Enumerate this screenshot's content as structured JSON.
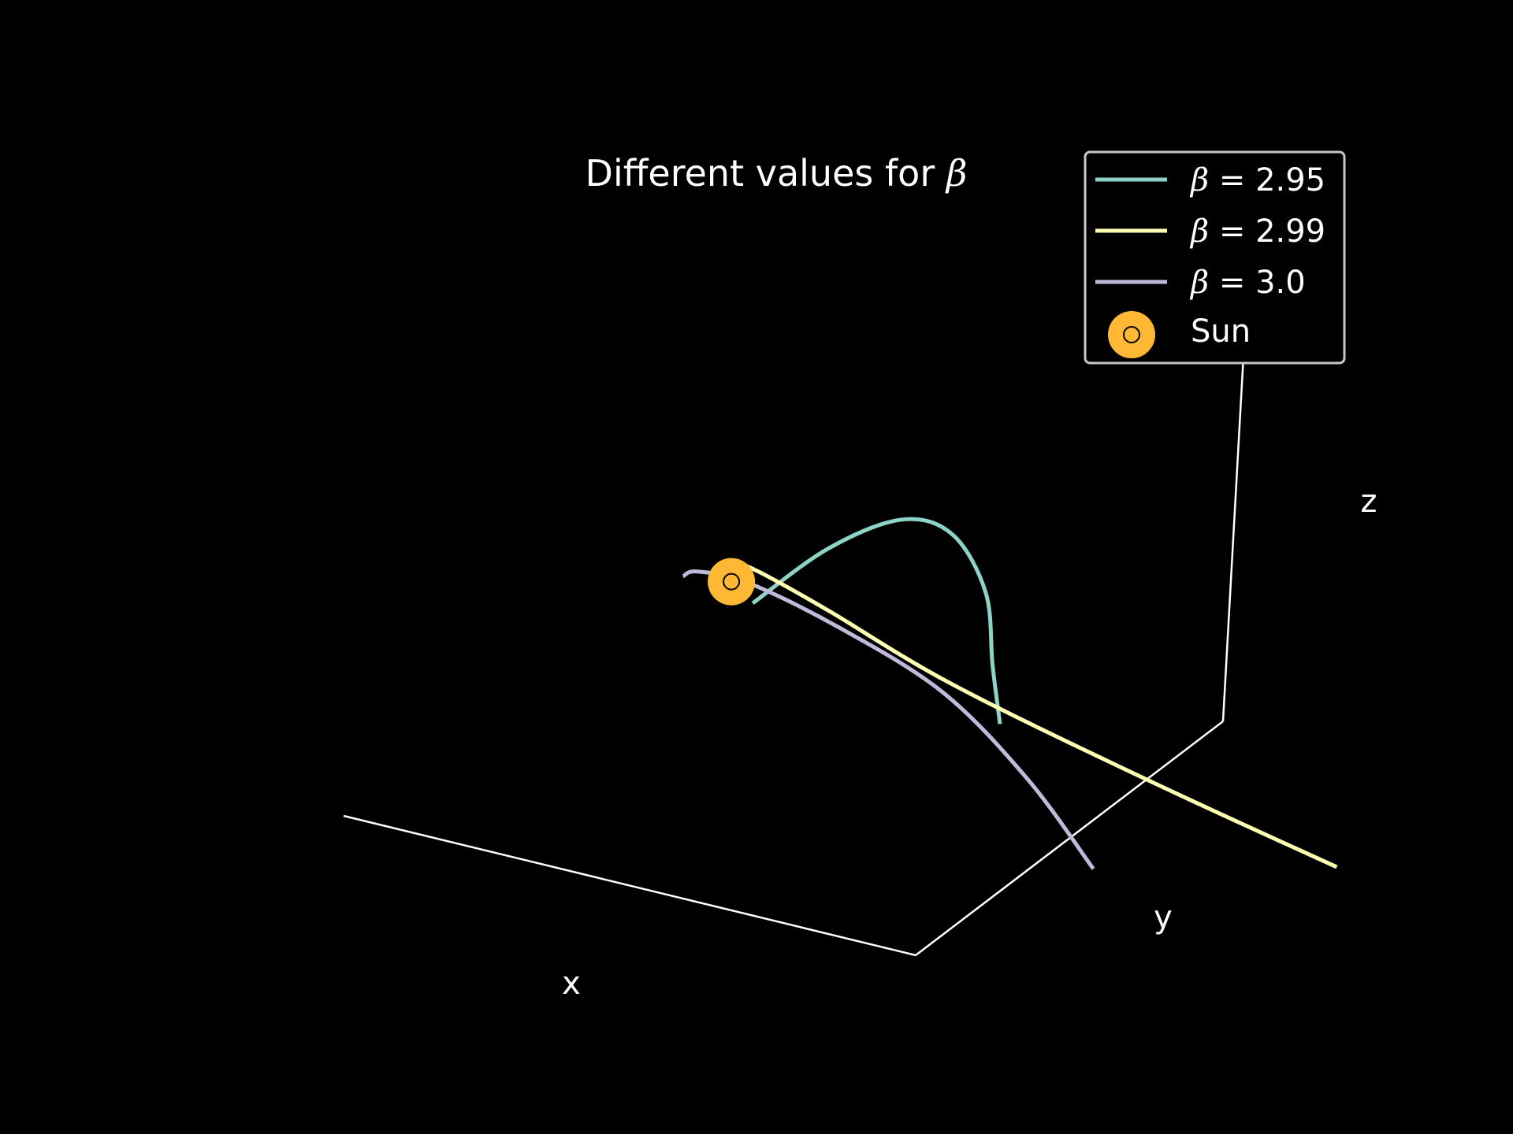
{
  "chart_data": {
    "type": "line",
    "projection": "3d",
    "title_prefix": "Different values for ",
    "title_symbol": "β",
    "xlabel": "x",
    "ylabel": "y",
    "zlabel": "z",
    "grid": false,
    "axes_panes": false,
    "legend_placement": "top-right",
    "series": [
      {
        "symbol": "β",
        "label_rest": " = 2.95",
        "color": "#8dd3c7",
        "points": [
          [
            0.72,
            0.28,
            0.51
          ],
          [
            0.6,
            0.55,
            0.57
          ],
          [
            0.45,
            0.75,
            0.6
          ],
          [
            0.3,
            0.8,
            0.58
          ],
          [
            0.12,
            0.68,
            0.52
          ],
          [
            0.0,
            0.5,
            0.44
          ],
          [
            -0.08,
            0.4,
            0.36
          ]
        ]
      },
      {
        "symbol": "β",
        "label_rest": " = 2.99",
        "color": "#ffffb3",
        "points": [
          [
            -2.02,
            -1.02,
            0.66
          ],
          [
            -1.12,
            -0.61,
            0.62
          ],
          [
            -0.22,
            -0.17,
            0.58
          ],
          [
            0.41,
            0.21,
            0.55
          ],
          [
            0.73,
            0.38,
            0.54
          ],
          [
            0.87,
            0.44,
            0.535
          ]
        ]
      },
      {
        "symbol": "β",
        "label_rest": " = 3.0",
        "color": "#bebada",
        "points": [
          [
            -1.4,
            -1.45,
            0.67
          ],
          [
            -0.82,
            -0.8,
            0.62
          ],
          [
            -0.2,
            -0.2,
            0.57
          ],
          [
            0.36,
            0.16,
            0.54
          ],
          [
            0.76,
            0.32,
            0.535
          ],
          [
            0.94,
            0.33,
            0.53
          ],
          [
            0.98,
            0.31,
            0.52
          ]
        ]
      }
    ],
    "sun": {
      "label": "Sun",
      "marker": "○",
      "color": "#ffb833",
      "position": [
        0.87,
        0.42,
        0.5
      ]
    }
  }
}
